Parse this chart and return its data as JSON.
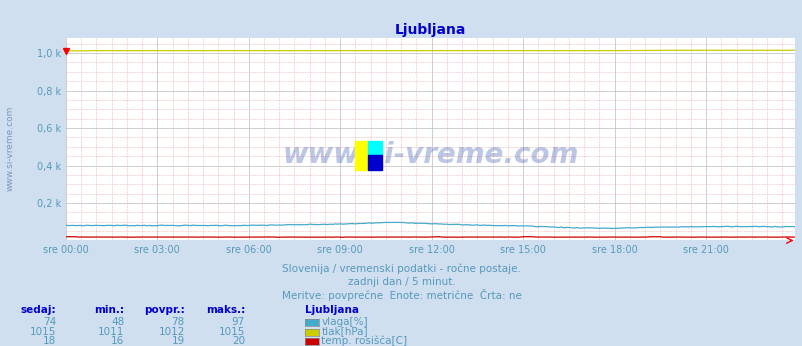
{
  "title": "Ljubljana",
  "bg_color": "#d0dff0",
  "plot_bg_color": "#ffffff",
  "grid_color_major": "#bbbbbb",
  "grid_color_minor": "#f0b8b8",
  "title_color": "#0000cc",
  "axis_label_color": "#5599bb",
  "text_color": "#5599bb",
  "sidebar_text": "www.si-vreme.com",
  "sidebar_color": "#7799bb",
  "x_ticks": [
    "sre 00:00",
    "sre 03:00",
    "sre 06:00",
    "sre 09:00",
    "sre 12:00",
    "sre 15:00",
    "sre 18:00",
    "sre 21:00"
  ],
  "x_tick_positions": [
    0,
    36,
    72,
    108,
    144,
    180,
    216,
    252
  ],
  "n_points": 288,
  "ylim": [
    0,
    1080
  ],
  "ytick_vals": [
    200,
    400,
    600,
    800,
    1000
  ],
  "ytick_labels": [
    "0,2 k",
    "0,4 k",
    "0,6 k",
    "0,8 k",
    "1,0 k"
  ],
  "vlaga_color": "#44aacc",
  "tlak_color": "#cccc00",
  "rosisce_color": "#cc0000",
  "watermark": "www.si-vreme.com",
  "subtitle1": "Slovenija / vremenski podatki - ročne postaje.",
  "subtitle2": "zadnji dan / 5 minut.",
  "subtitle3": "Meritve: povprečne  Enote: metrične  Črta: ne",
  "legend_title": "Ljubljana",
  "col_sedaj": "sedaj:",
  "col_min": "min.:",
  "col_povpr": "povpr.:",
  "col_maks": "maks.:",
  "vlaga_sedaj": 74,
  "vlaga_min": 48,
  "vlaga_povpr": 78,
  "vlaga_maks": 97,
  "tlak_sedaj": 1015,
  "tlak_min": 1011,
  "tlak_povpr": 1012,
  "tlak_maks": 1015,
  "rosisce_sedaj": 18,
  "rosisce_min": 16,
  "rosisce_povpr": 19,
  "rosisce_maks": 20,
  "label_vlaga": "vlaga[%]",
  "label_tlak": "tlak[hPa]",
  "label_rosisce": "temp. rosišča[C]"
}
